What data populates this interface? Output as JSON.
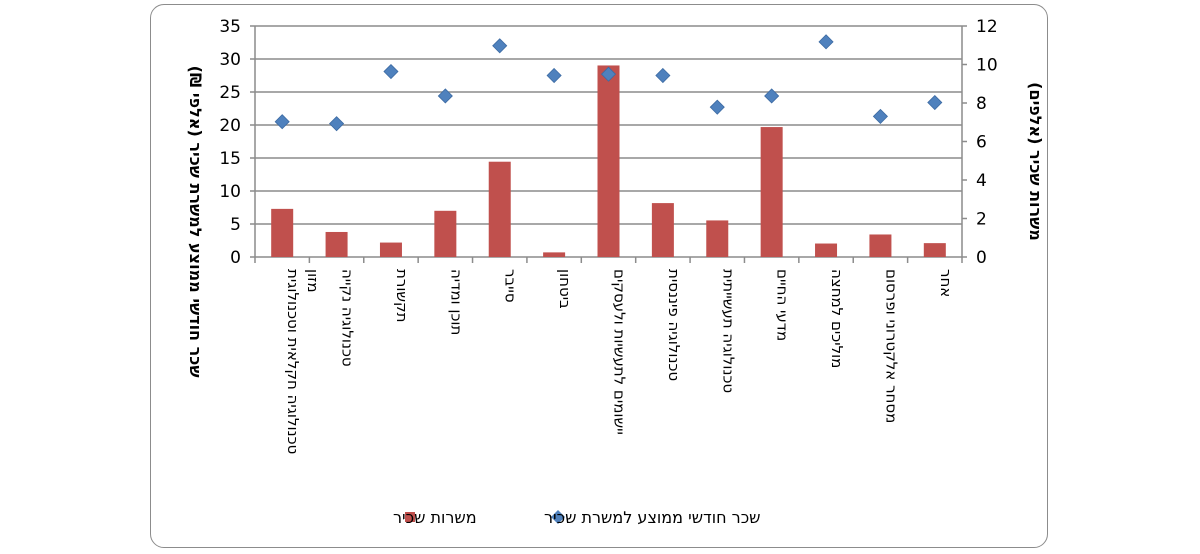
{
  "chart_data": {
    "type": "bar",
    "categories": [
      "טכנולוגיה חקלאית וטכנולוגית מזון",
      "טכנולוגיה נקייה",
      "תקשורת",
      "תוכן ומדיה",
      "סייבר",
      "ביטחון",
      "יישומים לתעשיות ולעסקים",
      "טכנולוגיה פיננסית",
      "טכנולוגיה תעשייתית",
      "מדעי החיים",
      "מוליכים למחצה",
      "מסחר אלקטרוני ופרסום",
      "אחר"
    ],
    "series": [
      {
        "name": "משרות שכיר",
        "kind": "bar",
        "axis": "right",
        "color": "#c0504d",
        "values": [
          2.5,
          1.3,
          0.75,
          2.4,
          4.95,
          0.24,
          9.95,
          2.8,
          1.9,
          6.75,
          0.7,
          1.17,
          0.72
        ]
      },
      {
        "name": "שכר חודשי ממוצע למשרת שכיר",
        "kind": "marker",
        "axis": "left",
        "color": "#4f81bd",
        "values": [
          20.5,
          20.2,
          28.1,
          24.4,
          32.0,
          27.5,
          27.7,
          27.5,
          22.7,
          24.4,
          32.6,
          21.3,
          23.4
        ]
      }
    ],
    "ylabel_left": "שכר חודשי ממוצע למשרת שכיר (אלפי ₪)",
    "ylabel_right": "משרות שכיר (אלפים)",
    "ylim_left": [
      0,
      35
    ],
    "yticks_left": [
      0,
      5,
      10,
      15,
      20,
      25,
      30,
      35
    ],
    "ylim_right": [
      0,
      12
    ],
    "yticks_right": [
      0,
      2,
      4,
      6,
      8,
      10,
      12
    ],
    "grid": true,
    "legend": "bottom"
  }
}
